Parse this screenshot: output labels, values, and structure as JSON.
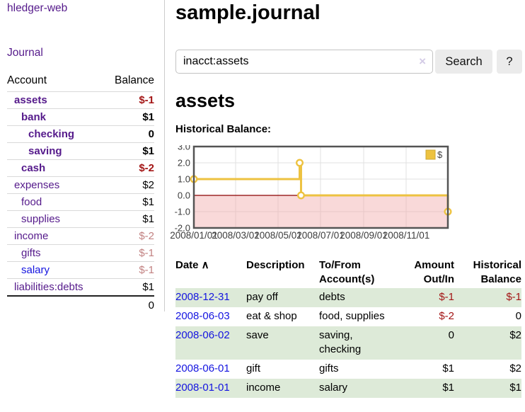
{
  "colors": {
    "link_visited": "#551a8b",
    "link_unvisited": "#1414e0",
    "negative_strong": "#a31515",
    "negative_muted": "#c28282",
    "row_highlight": "#ddead8",
    "divider": "#cccccc",
    "separator": "#d9d9d9",
    "total_border": "#222222",
    "button_bg": "#ebebeb",
    "input_border": "#c3c3c3",
    "clear_icon": "#d4cbe6"
  },
  "sidebar": {
    "brand": "hledger-web",
    "journal_label": "Journal",
    "accounts": {
      "header_account": "Account",
      "header_balance": "Balance",
      "rows": [
        {
          "name": "assets",
          "indent": 1,
          "bold": true,
          "balance": "$-1",
          "neg": "strong"
        },
        {
          "name": "bank",
          "indent": 2,
          "bold": true,
          "balance": "$1",
          "neg": "none"
        },
        {
          "name": "checking",
          "indent": 3,
          "bold": true,
          "balance": "0",
          "neg": "none"
        },
        {
          "name": "saving",
          "indent": 3,
          "bold": true,
          "balance": "$1",
          "neg": "none"
        },
        {
          "name": "cash",
          "indent": 2,
          "bold": true,
          "balance": "$-2",
          "neg": "strong"
        },
        {
          "name": "expenses",
          "indent": 1,
          "bold": false,
          "balance": "$2",
          "neg": "none"
        },
        {
          "name": "food",
          "indent": 2,
          "bold": false,
          "balance": "$1",
          "neg": "none"
        },
        {
          "name": "supplies",
          "indent": 2,
          "bold": false,
          "balance": "$1",
          "neg": "none"
        },
        {
          "name": "income",
          "indent": 1,
          "bold": false,
          "balance": "$-2",
          "neg": "muted"
        },
        {
          "name": "gifts",
          "indent": 2,
          "bold": false,
          "balance": "$-1",
          "neg": "muted"
        },
        {
          "name": "salary",
          "indent": 2,
          "bold": false,
          "balance": "$-1",
          "neg": "muted",
          "link_style": "unvisited"
        },
        {
          "name": "liabilities:debts",
          "indent": 1,
          "bold": false,
          "balance": "$1",
          "neg": "none"
        }
      ],
      "total": "0"
    }
  },
  "header": {
    "title": "sample.journal"
  },
  "search": {
    "value": "inacct:assets",
    "clear_icon": "×",
    "button_label": "Search",
    "help_label": "?"
  },
  "account_page": {
    "title": "assets",
    "chart_label": "Historical Balance:"
  },
  "chart_data": {
    "type": "line",
    "style": "steps",
    "title": "Historical Balance",
    "x_tick_labels": [
      "2008/01/01",
      "2008/03/01",
      "2008/05/01",
      "2008/07/01",
      "2008/09/01",
      "2008/11/01"
    ],
    "y_tick_labels": [
      "3.0",
      "2.0",
      "1.0",
      "0.0",
      "-1.0",
      "-2.0"
    ],
    "xlim": [
      "2008-01-01",
      "2008-12-31"
    ],
    "ylim": [
      -2,
      3
    ],
    "grid": true,
    "legend_position": "top-right",
    "series": [
      {
        "name": "$",
        "color": "#edc240",
        "marker": "circle-open",
        "points": [
          [
            "2008-01-01",
            1
          ],
          [
            "2008-06-01",
            2
          ],
          [
            "2008-06-03",
            0
          ],
          [
            "2008-12-31",
            -1
          ]
        ]
      }
    ],
    "colors": {
      "grid": "#e0e0e0",
      "border": "#545454",
      "zero_line": "#8b0000",
      "negative_fill": "rgba(242,170,170,0.45)",
      "tick_text": "#3c3c3c",
      "legend_border": "#cda834",
      "legend_text": "#444444"
    }
  },
  "register_table": {
    "columns": [
      {
        "lines": [
          "Date"
        ],
        "sort_icon": "∧"
      },
      {
        "lines": [
          "Description"
        ]
      },
      {
        "lines": [
          "To/From",
          "Account(s)"
        ]
      },
      {
        "lines": [
          "Amount",
          "Out/In"
        ],
        "align": "right"
      },
      {
        "lines": [
          "Historical",
          "Balance"
        ],
        "align": "right"
      }
    ],
    "rows": [
      {
        "date": "2008-12-31",
        "description": "pay off",
        "accounts": "debts",
        "amount": "$-1",
        "amount_negative": true,
        "balance": "$-1",
        "balance_negative": true
      },
      {
        "date": "2008-06-03",
        "description": "eat & shop",
        "accounts": "food, supplies",
        "amount": "$-2",
        "amount_negative": true,
        "balance": "0",
        "balance_negative": false
      },
      {
        "date": "2008-06-02",
        "description": "save",
        "accounts": "saving, checking",
        "amount": "0",
        "amount_negative": false,
        "balance": "$2",
        "balance_negative": false
      },
      {
        "date": "2008-06-01",
        "description": "gift",
        "accounts": "gifts",
        "amount": "$1",
        "amount_negative": false,
        "balance": "$2",
        "balance_negative": false
      },
      {
        "date": "2008-01-01",
        "description": "income",
        "accounts": "salary",
        "amount": "$1",
        "amount_negative": false,
        "balance": "$1",
        "balance_negative": false
      }
    ]
  }
}
